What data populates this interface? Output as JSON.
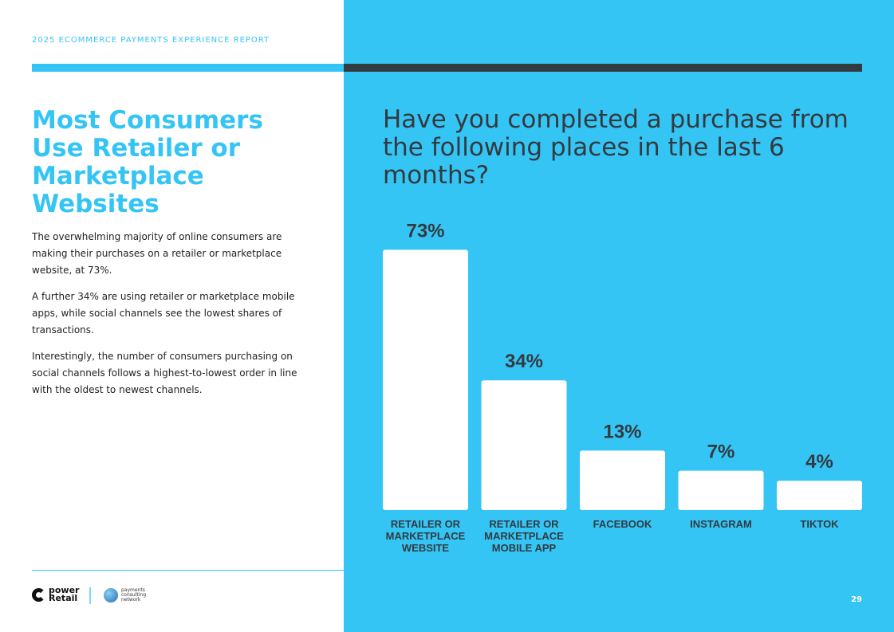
{
  "header": {
    "report_title": "2025 ECOMMERCE PAYMENTS EXPERIENCE REPORT"
  },
  "left": {
    "headline": "Most Consumers Use Retailer or Marketplace Websites",
    "paragraphs": [
      "The overwhelming majority of online consumers are making their purchases on a retailer or marketplace website, at 73%.",
      "A further 34% are using retailer or marketplace mobile apps, while social channels see the lowest shares of transactions.",
      "Interestingly, the number of consumers purchasing on social channels follows a highest-to-lowest order in line with the oldest to newest channels."
    ]
  },
  "footer": {
    "logo1": "Power Retail",
    "logo2": "payments consulting network",
    "page_number": "29"
  },
  "colors": {
    "accent": "#35C5F4",
    "dark": "#333a40",
    "bar": "#ffffff"
  },
  "chart_data": {
    "type": "bar",
    "title": "Have you completed a purchase from the following places in the last 6 months?",
    "categories": [
      [
        "RETAILER OR",
        "MARKETPLACE",
        "WEBSITE"
      ],
      [
        "RETAILER OR",
        "MARKETPLACE",
        "MOBILE APP"
      ],
      [
        "FACEBOOK"
      ],
      [
        "INSTAGRAM"
      ],
      [
        "TIKTOK"
      ]
    ],
    "values": [
      73,
      34,
      13,
      7,
      4
    ],
    "value_labels": [
      "73%",
      "34%",
      "13%",
      "7%",
      "4%"
    ],
    "ylim": [
      0,
      100
    ],
    "grid": false
  }
}
